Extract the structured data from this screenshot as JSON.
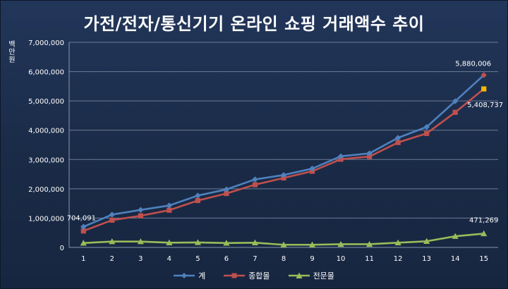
{
  "chart_data": {
    "type": "line",
    "title": "가전/전자/통신기기 온라인 쇼핑 거래액수 추이",
    "ylabel": "백만원",
    "xlabel": "",
    "ylim": [
      0,
      7000000
    ],
    "yticks": [
      "0",
      "1,000,000",
      "2,000,000",
      "3,000,000",
      "4,000,000",
      "5,000,000",
      "6,000,000",
      "7,000,000"
    ],
    "x": [
      1,
      2,
      3,
      4,
      5,
      6,
      7,
      8,
      9,
      10,
      11,
      12,
      13,
      14,
      15
    ],
    "grid": true,
    "legend_position": "bottom",
    "series": [
      {
        "name": "계",
        "color": "#4f81bd",
        "marker": "diamond",
        "values": [
          704091,
          1120000,
          1280000,
          1430000,
          1770000,
          1980000,
          2320000,
          2470000,
          2690000,
          3110000,
          3210000,
          3740000,
          4110000,
          4990000,
          5880006
        ]
      },
      {
        "name": "종합몰",
        "color": "#c0504d",
        "marker": "square",
        "values": [
          560000,
          930000,
          1080000,
          1270000,
          1600000,
          1840000,
          2140000,
          2370000,
          2600000,
          3010000,
          3100000,
          3580000,
          3890000,
          4610000,
          5408737
        ]
      },
      {
        "name": "전문몰",
        "color": "#9bbb59",
        "marker": "triangle",
        "values": [
          150000,
          200000,
          200000,
          160000,
          170000,
          150000,
          160000,
          90000,
          90000,
          110000,
          110000,
          160000,
          210000,
          380000,
          471269
        ]
      }
    ],
    "data_labels": [
      {
        "series": 0,
        "index": 0,
        "text": "704,091"
      },
      {
        "series": 0,
        "index": 14,
        "text": "5,880,006"
      },
      {
        "series": 1,
        "index": 14,
        "text": "5,408,737"
      },
      {
        "series": 2,
        "index": 14,
        "text": "471,269"
      }
    ],
    "highlight_markers": [
      {
        "series": 0,
        "index": 14,
        "color": "#c0504d"
      },
      {
        "series": 1,
        "index": 14,
        "color": "#f5b700"
      }
    ]
  }
}
